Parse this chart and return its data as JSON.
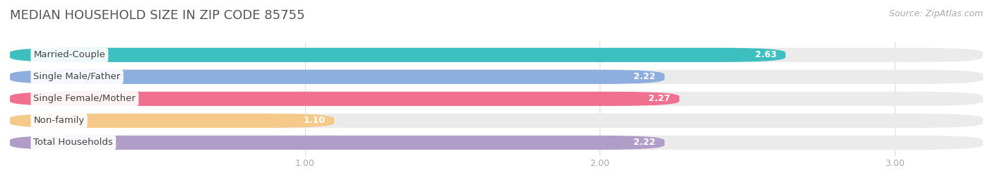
{
  "title": "MEDIAN HOUSEHOLD SIZE IN ZIP CODE 85755",
  "source": "Source: ZipAtlas.com",
  "categories": [
    "Married-Couple",
    "Single Male/Father",
    "Single Female/Mother",
    "Non-family",
    "Total Households"
  ],
  "values": [
    2.63,
    2.22,
    2.27,
    1.1,
    2.22
  ],
  "bar_colors": [
    "#3dbfbf",
    "#8faee0",
    "#f07090",
    "#f5c98a",
    "#b09ec8"
  ],
  "background_color": "#ffffff",
  "bar_bg_color": "#ebebeb",
  "xlim_data": [
    0,
    3.3
  ],
  "xmin": 0,
  "xmax": 3.0,
  "xticks": [
    1.0,
    2.0,
    3.0
  ],
  "title_fontsize": 13,
  "source_fontsize": 9,
  "label_fontsize": 9.5,
  "value_fontsize": 9
}
